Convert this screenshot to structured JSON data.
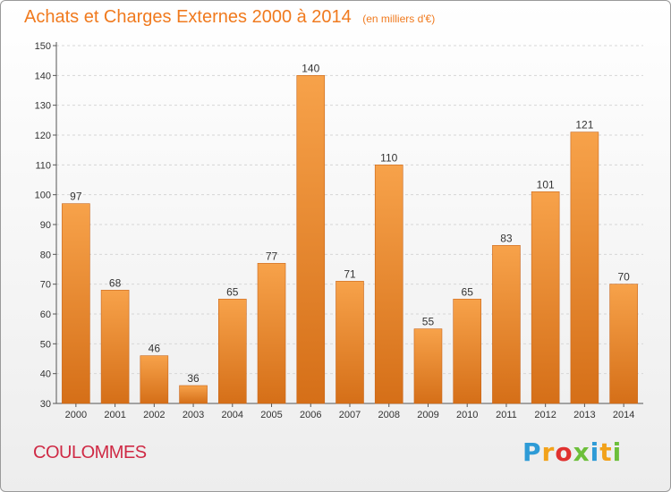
{
  "header": {
    "title": "Achats et Charges Externes 2000 à 2014",
    "unit": "(en milliers d'€)"
  },
  "footer": {
    "city": "COULOMMES",
    "logo_text": "Proxiti"
  },
  "colors": {
    "bar_light": "#f7a24a",
    "bar_dark": "#d56f18",
    "title": "#f07a1e",
    "city": "#cf2a45",
    "logo": [
      "#2e9bd6",
      "#f2a21a",
      "#e0312f",
      "#6cbf3a",
      "#2e9bd6",
      "#f2a21a",
      "#6cbf3a"
    ]
  },
  "chart_data": {
    "type": "bar",
    "title": "Achats et Charges Externes 2000 à 2014",
    "subtitle": "(en milliers d'€)",
    "categories": [
      "2000",
      "2001",
      "2002",
      "2003",
      "2004",
      "2005",
      "2006",
      "2007",
      "2008",
      "2009",
      "2010",
      "2011",
      "2012",
      "2013",
      "2014"
    ],
    "values": [
      97,
      68,
      46,
      36,
      65,
      77,
      140,
      71,
      110,
      55,
      65,
      83,
      101,
      121,
      70
    ],
    "ylim": [
      30,
      150
    ],
    "yticks": [
      30,
      40,
      50,
      60,
      70,
      80,
      90,
      100,
      110,
      120,
      130,
      140,
      150
    ],
    "grid": true,
    "data_labels": true
  }
}
